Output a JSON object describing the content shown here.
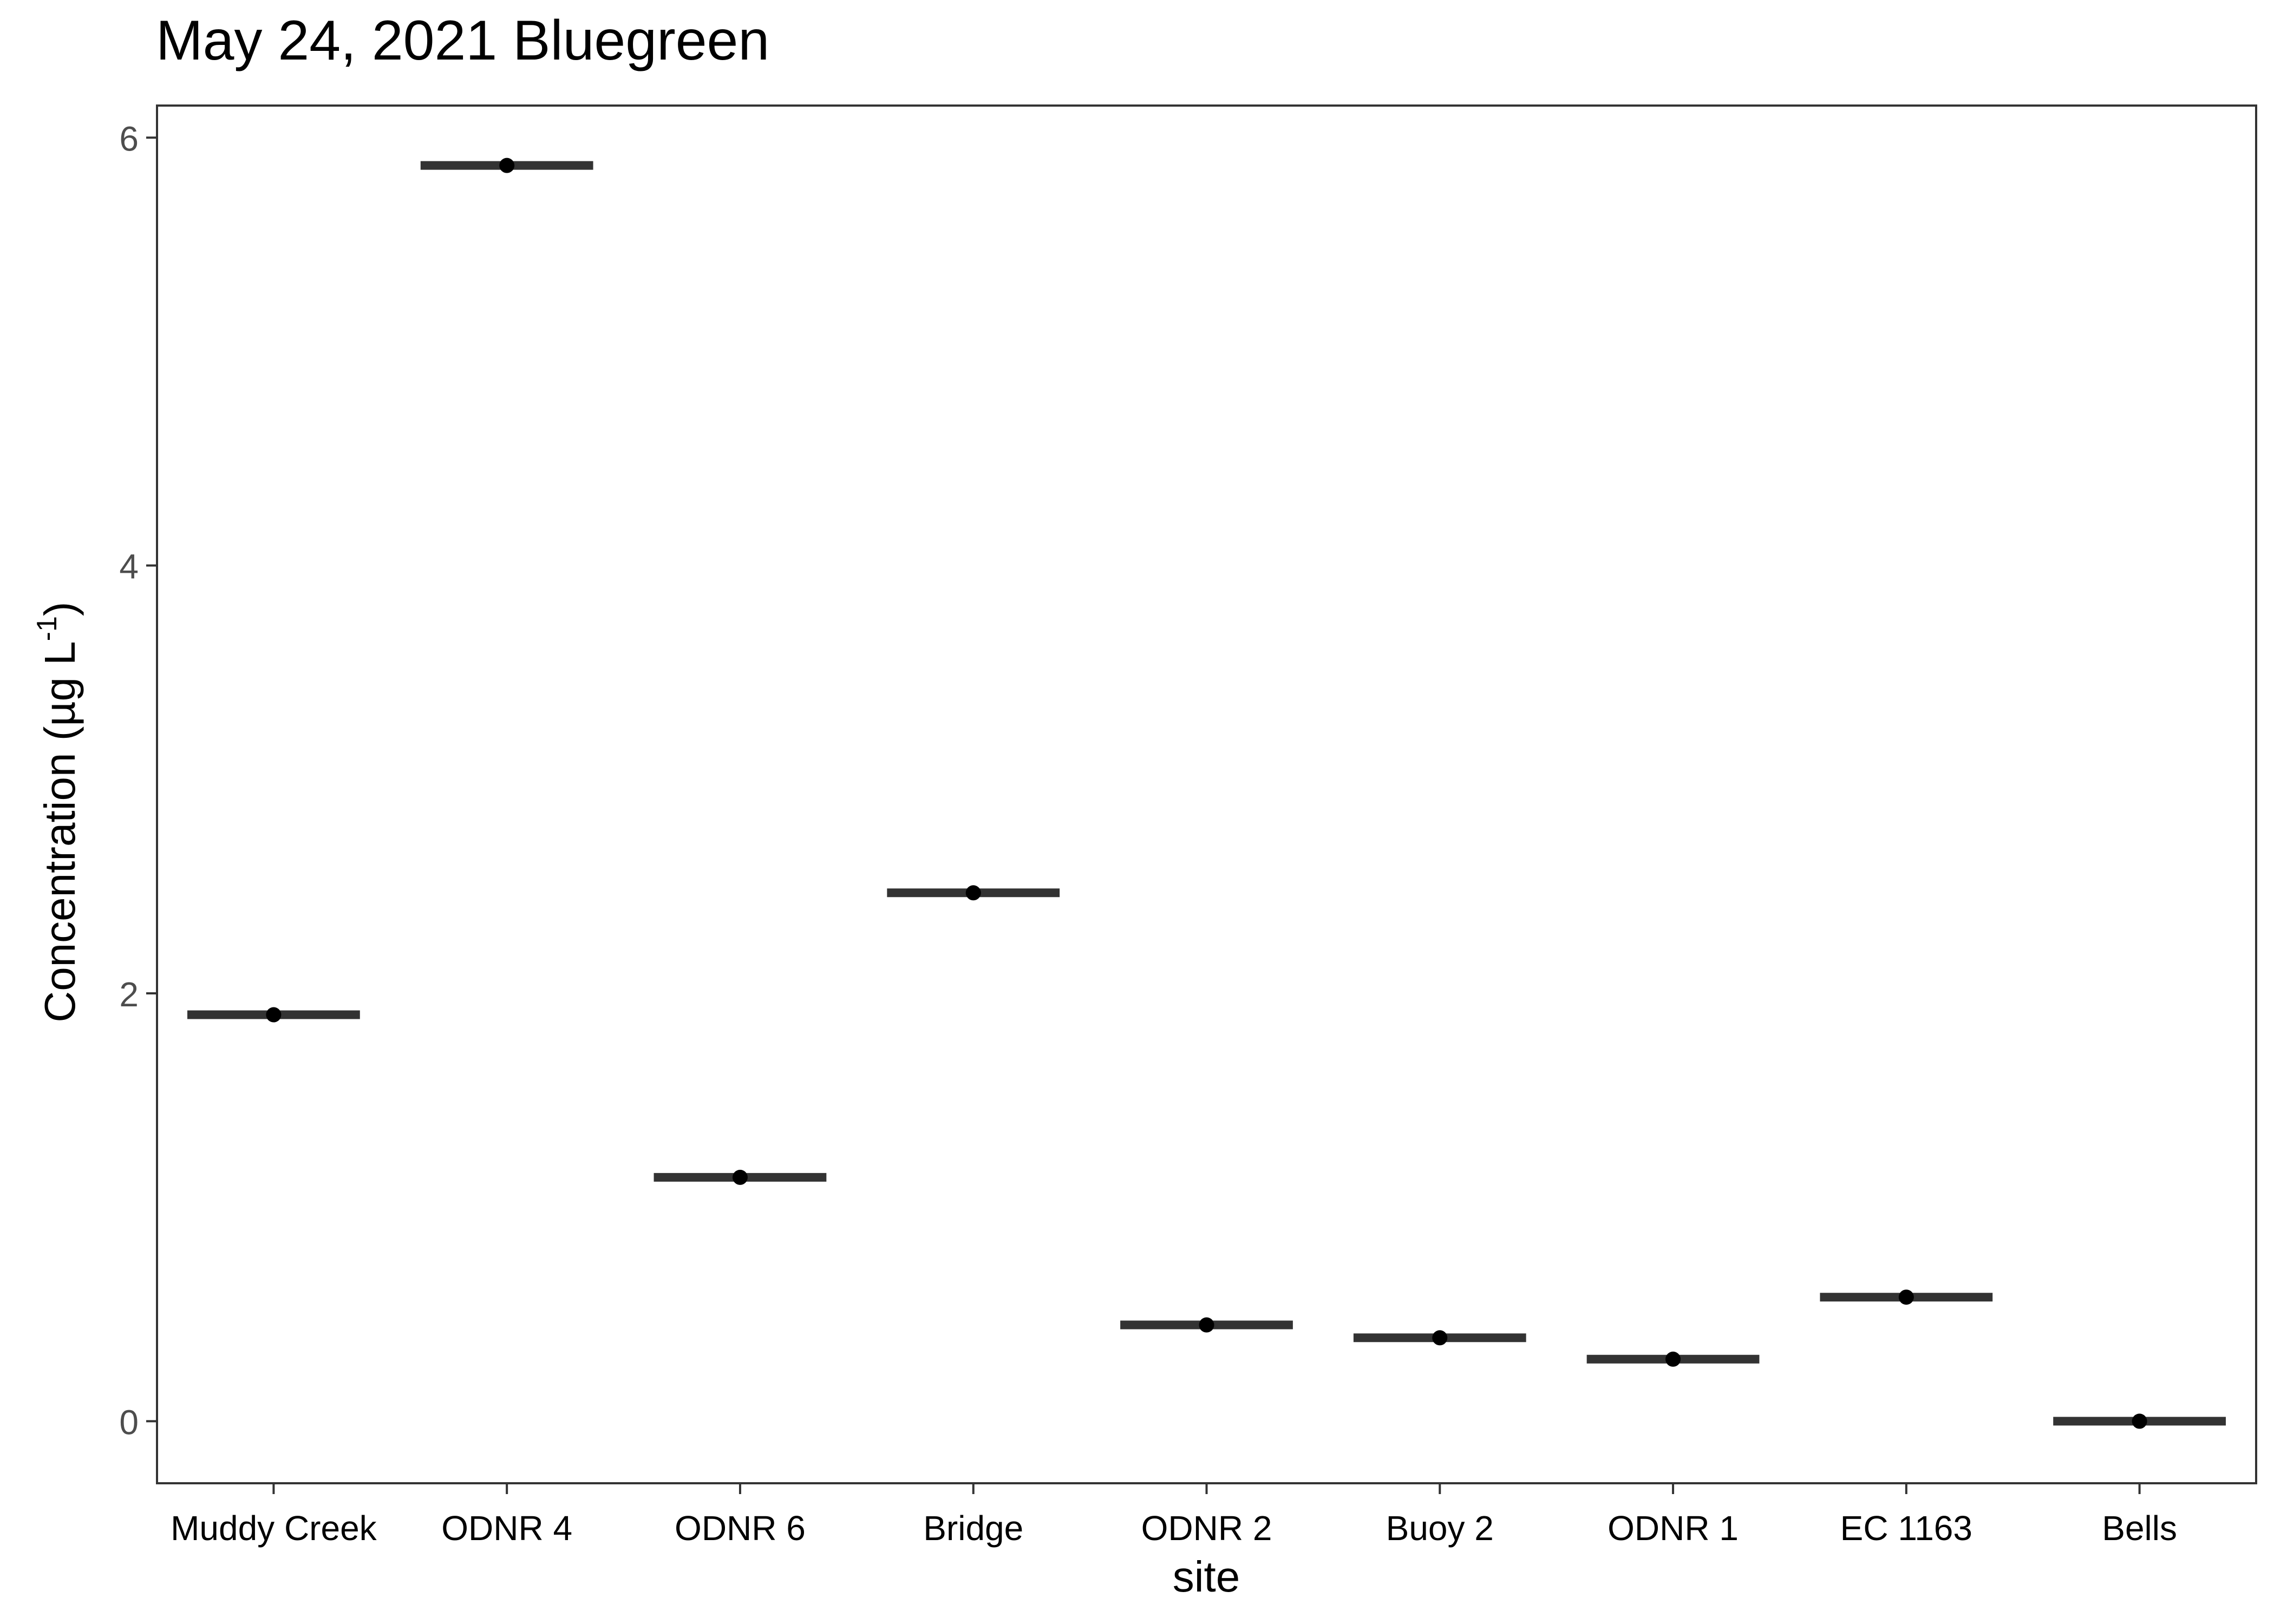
{
  "chart_data": {
    "type": "scatter",
    "title": "May 24, 2021 Bluegreen",
    "xlabel": "site",
    "ylabel": "Concentration (µg L",
    "ylabel_superscript": "-1",
    "ylabel_close": ")",
    "categories": [
      "Muddy Creek",
      "ODNR 4",
      "ODNR 6",
      "Bridge",
      "ODNR 2",
      "Buoy 2",
      "ODNR 1",
      "EC 1163",
      "Bells"
    ],
    "values": [
      1.9,
      5.87,
      1.14,
      2.47,
      0.45,
      0.39,
      0.29,
      0.58,
      0.0
    ],
    "ylim": [
      -0.29,
      6.15
    ],
    "yticks": [
      0,
      2,
      4,
      6
    ],
    "ytick_labels": [
      "0",
      "2",
      "4",
      "6"
    ],
    "grid": false,
    "legend": "none",
    "marks": "point with horizontal bar (mean)",
    "colors": {
      "point": "#000000",
      "bar": "#333333",
      "panel_border": "#333333",
      "tick": "#333333"
    }
  }
}
